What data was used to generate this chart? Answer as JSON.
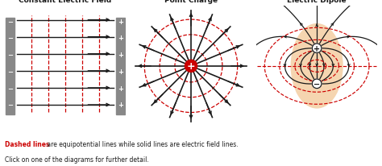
{
  "bg_color": "#ffffff",
  "title1": "Constant Electric Field",
  "title2": "Point Charge",
  "title3": "Electric Dipole",
  "caption_red": "Dashed lines",
  "caption_black": " are equipotential lines while solid lines are electric field lines.",
  "caption_black2": "Click on one of the diagrams for further detail.",
  "red_color": "#cc0000",
  "dark_color": "#1a1a1a",
  "plate_color": "#888888",
  "field_line_color": "#1a1a1a",
  "equipot_color": "#cc0000",
  "dipole_fill": "#f5d5b0",
  "charge_center_color": "#cc0000",
  "equip_circles_pc": [
    0.32,
    0.62,
    0.92
  ],
  "n_field_lines_pc": 16,
  "n_field_lines_dipole": 12,
  "dipole_d": 0.38
}
